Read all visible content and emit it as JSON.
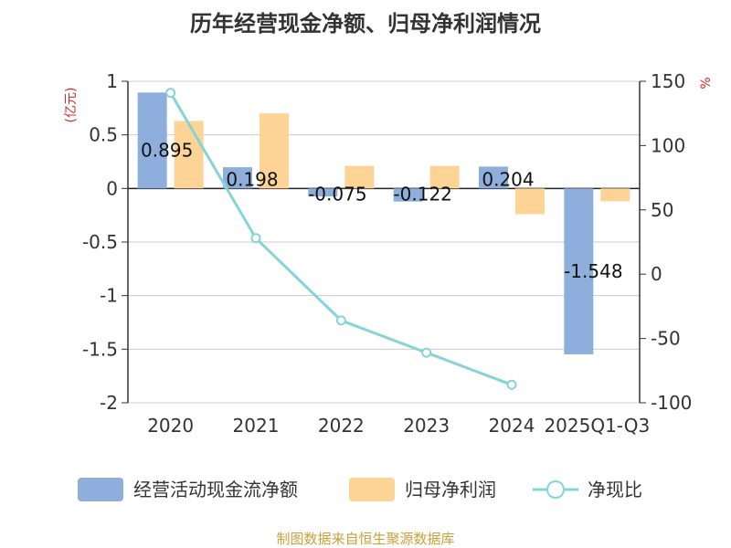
{
  "chart_data": {
    "type": "bar+line",
    "title": "历年经营现金净额、归母净利润情况",
    "categories": [
      "2020",
      "2021",
      "2022",
      "2023",
      "2024",
      "2025Q1-Q3"
    ],
    "left_axis": {
      "label": "(亿元)",
      "min": -2,
      "max": 1,
      "ticks": [
        1,
        0.5,
        0,
        -0.5,
        -1,
        -1.5,
        -2
      ]
    },
    "right_axis": {
      "label": "%",
      "min": -100,
      "max": 150,
      "ticks": [
        150,
        100,
        50,
        0,
        -50,
        -100
      ]
    },
    "series": [
      {
        "name": "经营活动现金流净额",
        "kind": "bar",
        "axis": "left",
        "values": [
          0.895,
          0.198,
          -0.075,
          -0.122,
          0.204,
          -1.548
        ],
        "labels": [
          "0.895",
          "0.198",
          "-0.075",
          "-0.122",
          "0.204",
          "-1.548"
        ]
      },
      {
        "name": "归母净利润",
        "kind": "bar",
        "axis": "left",
        "values": [
          0.63,
          0.7,
          0.21,
          0.21,
          -0.24,
          -0.12
        ]
      },
      {
        "name": "净现比",
        "kind": "line",
        "axis": "right",
        "values": [
          141,
          28,
          -36,
          -61,
          -86,
          null
        ]
      }
    ],
    "colors": {
      "cash_flow": "#8eaedc",
      "net_profit": "#fdd496",
      "ratio": "#86d3d8",
      "axis_label": "#d9262b"
    },
    "source": "制图数据来自恒生聚源数据库"
  }
}
